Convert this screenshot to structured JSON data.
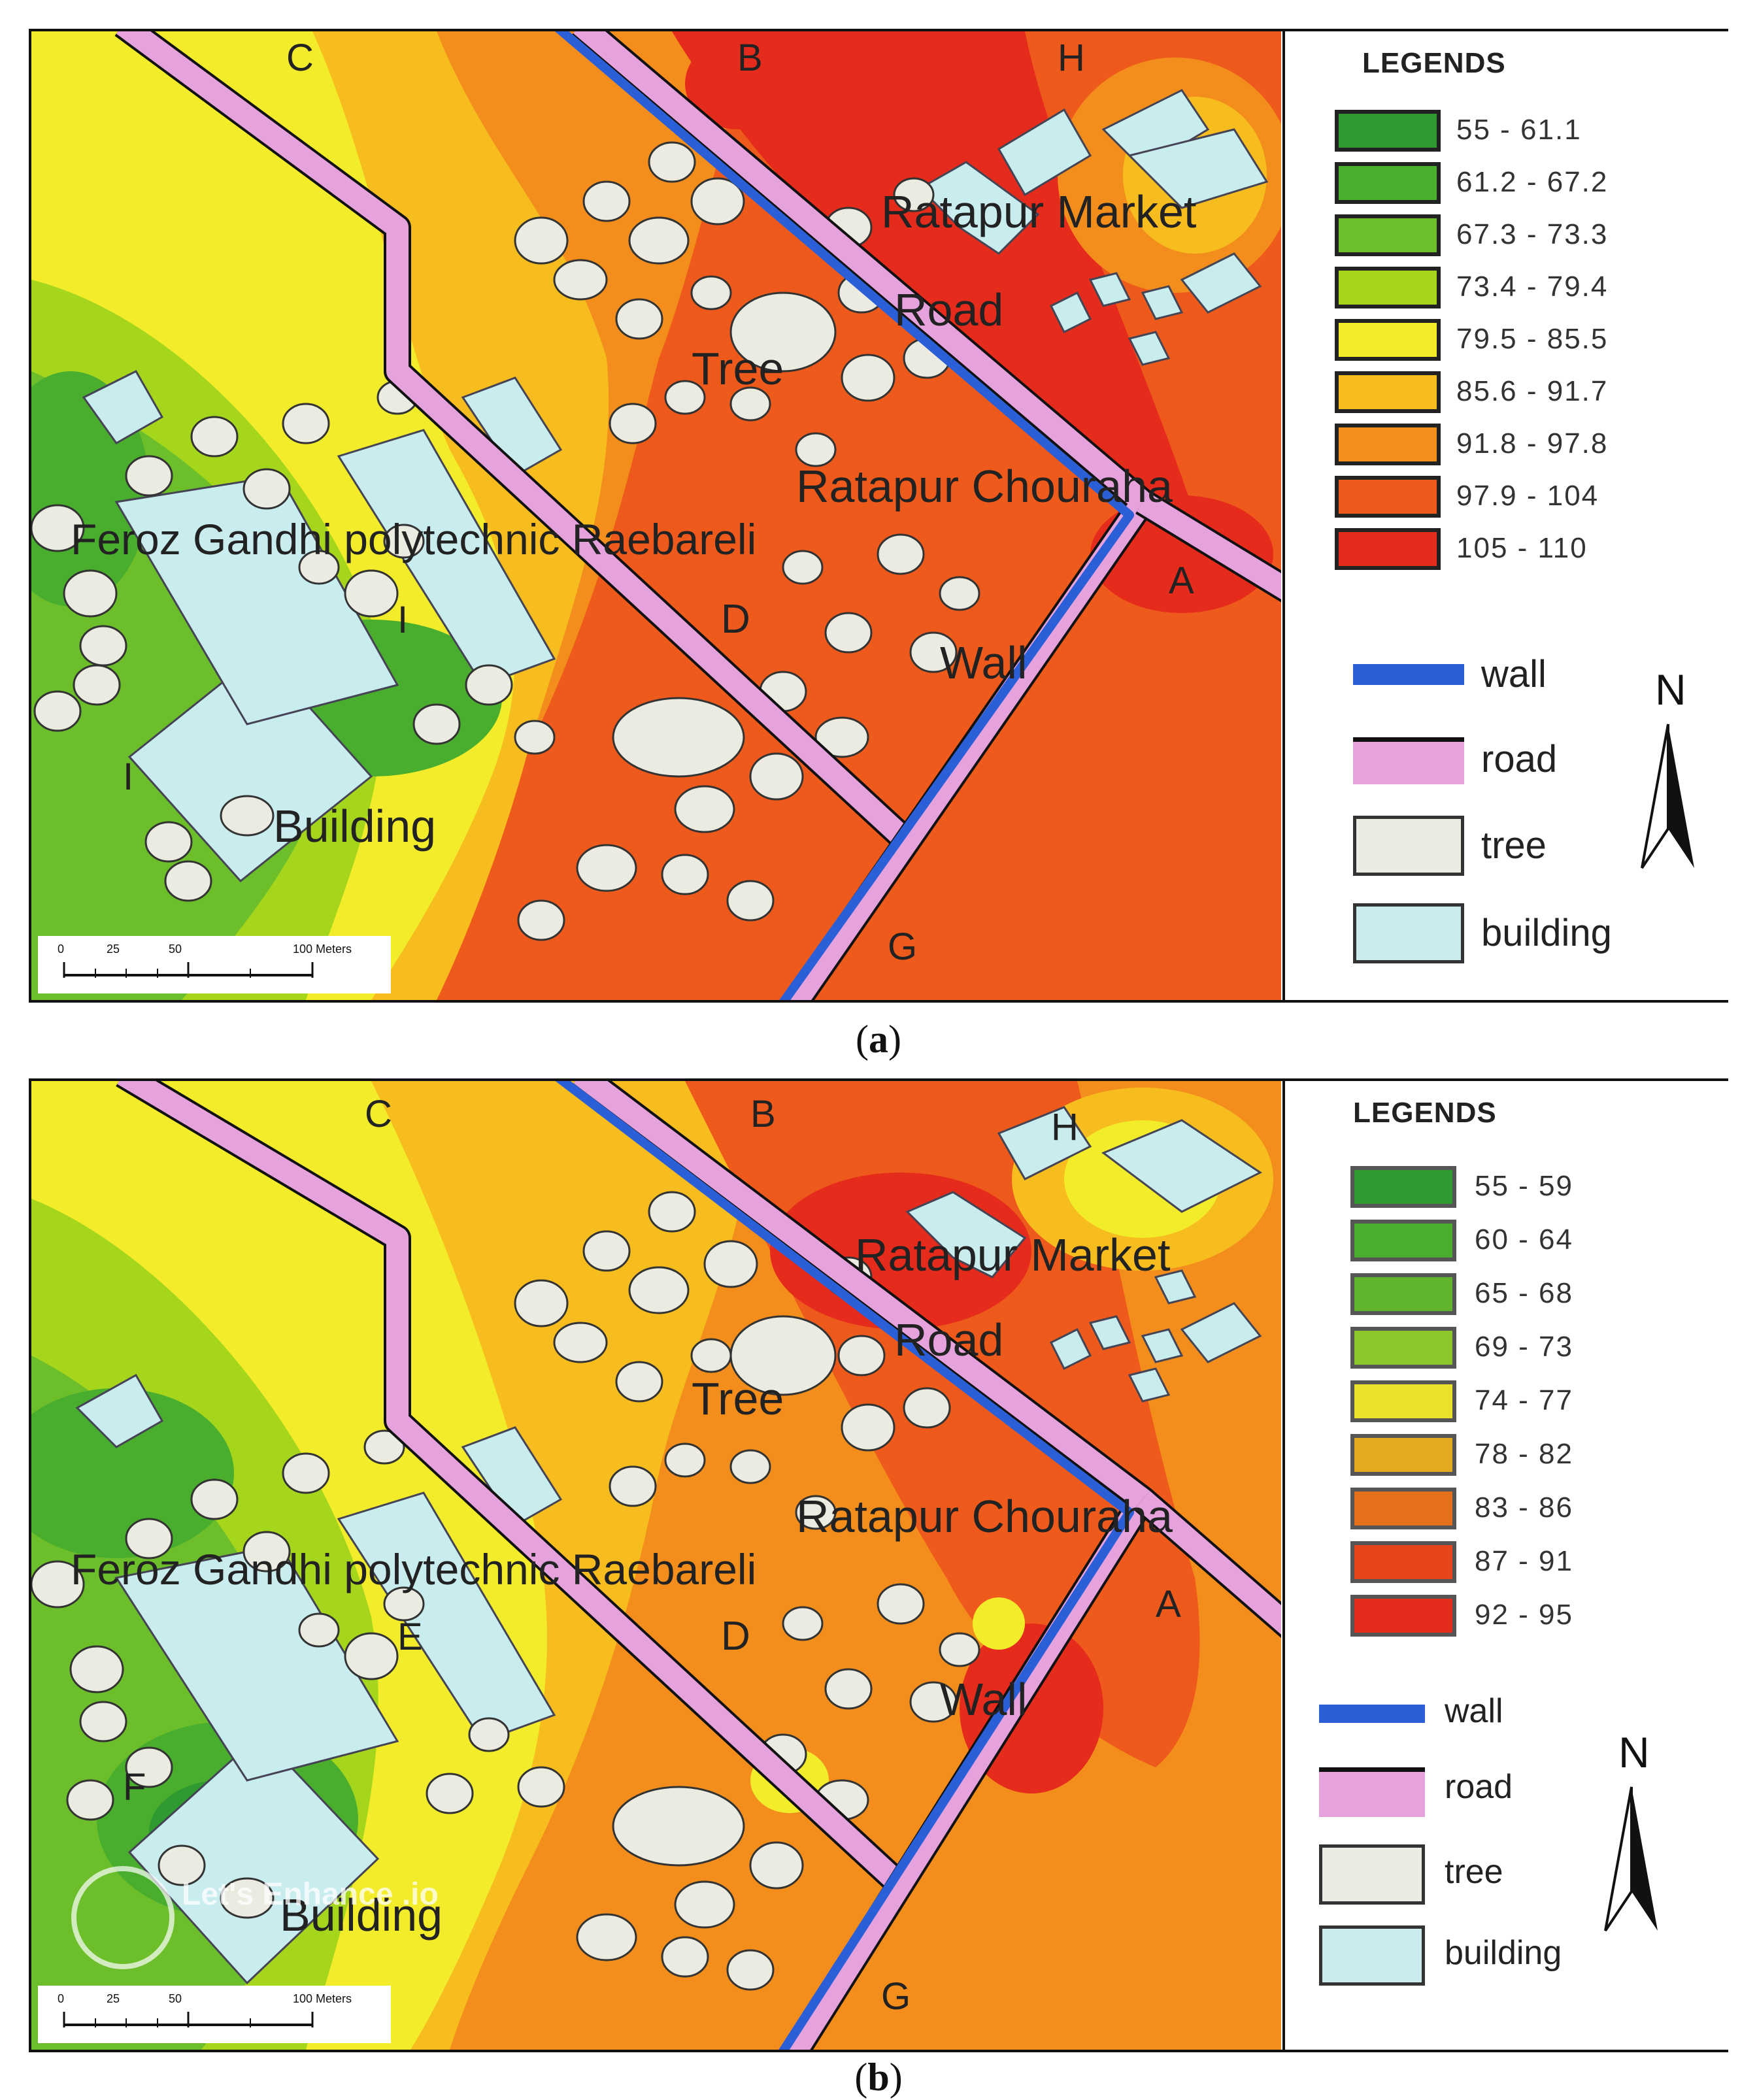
{
  "panels": [
    {
      "id": "a",
      "caption_letter": "a",
      "map_labels": {
        "market": "Ratapur Market",
        "road": "Road",
        "tree": "Tree",
        "chouraha": "Ratapur Chouraha",
        "college": "Feroz Gandhi polytechnic Raebareli",
        "wall": "Wall",
        "building": "Building",
        "point_A": "A",
        "point_B": "B",
        "point_C": "C",
        "point_D": "D",
        "point_E": "I",
        "point_F": "I",
        "point_G": "G",
        "point_H": "H"
      },
      "legend": {
        "title": "LEGENDS",
        "ranges": [
          "55 - 61.1",
          "61.2 - 67.2",
          "67.3 - 73.3",
          "73.4 - 79.4",
          "79.5 - 85.5",
          "85.6 - 91.7",
          "91.8 - 97.8",
          "97.9 - 104",
          "105 - 110"
        ],
        "features": [
          "wall",
          "road",
          "tree",
          "building"
        ],
        "north": "N"
      },
      "scale": {
        "ticks": [
          "0",
          "25",
          "50",
          "100 Meters"
        ]
      }
    },
    {
      "id": "b",
      "caption_letter": "b",
      "map_labels": {
        "market": "Ratapur Market",
        "road": "Road",
        "tree": "Tree",
        "chouraha": "Ratapur Chouraha",
        "college": "Feroz Gandhi polytechnic Raebareli",
        "wall": "Wall",
        "building": "Building",
        "point_A": "A",
        "point_B": "B",
        "point_C": "C",
        "point_D": "D",
        "point_E": "E",
        "point_F": "F",
        "point_G": "G",
        "point_H": "H"
      },
      "legend": {
        "title": "LEGENDS",
        "ranges": [
          "55 - 59",
          "60 - 64",
          "65 - 68",
          "69 - 73",
          "74 - 77",
          "78 - 82",
          "83 - 86",
          "87 - 91",
          "92 - 95"
        ],
        "features": [
          "wall",
          "road",
          "tree",
          "building"
        ],
        "north": "N"
      },
      "scale": {
        "ticks": [
          "0",
          "25",
          "50",
          "100 Meters"
        ]
      }
    }
  ],
  "colors": {
    "class_ramp": [
      "#2f9a2f",
      "#49ad2e",
      "#6cbf2b",
      "#a6d61c",
      "#f2ec2a",
      "#f7bd1e",
      "#f38e1c",
      "#ee5a1b",
      "#e52b1c"
    ],
    "wall": "#2a5fd8",
    "road": "#e6a2dd",
    "tree": "#ebebe1",
    "building": "#c9ecef"
  },
  "watermark": "Let's Enhance .io"
}
